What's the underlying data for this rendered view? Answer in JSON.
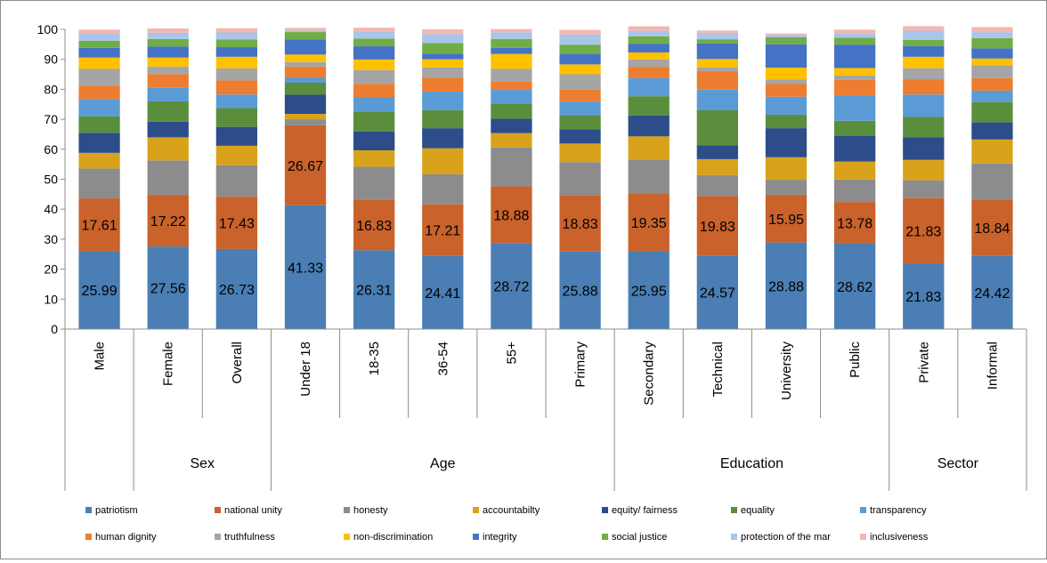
{
  "chart_data": {
    "type": "bar",
    "stacked": true,
    "ylim": [
      0,
      100
    ],
    "yticks": [
      0,
      10,
      20,
      30,
      40,
      50,
      60,
      70,
      80,
      90,
      100
    ],
    "grid": false,
    "legend_position": "bottom",
    "categories": [
      "Male",
      "Female",
      "Overall",
      "Under 18",
      "18-35",
      "36-54",
      "55+",
      "Primary",
      "Secondary",
      "Technical",
      "University",
      "Public",
      "Private",
      "Informal"
    ],
    "groups": [
      {
        "label": "",
        "categories": [
          "Male"
        ]
      },
      {
        "label": "Sex",
        "categories": [
          "Female",
          "Overall"
        ]
      },
      {
        "label": "Age",
        "categories": [
          "Under 18",
          "18-35",
          "36-54",
          "55+",
          "Primary"
        ]
      },
      {
        "label": "Education",
        "categories": [
          "Secondary",
          "Technical",
          "University",
          "Public"
        ]
      },
      {
        "label": "Sector",
        "categories": [
          "Private",
          "Informal"
        ]
      }
    ],
    "series": [
      {
        "name": "patriotism",
        "color": "#4a7eb4",
        "labeled": true,
        "values": [
          25.99,
          27.56,
          26.73,
          41.33,
          26.31,
          24.41,
          28.72,
          25.88,
          25.95,
          24.57,
          28.88,
          28.62,
          21.83,
          24.42
        ]
      },
      {
        "name": "national unity",
        "color": "#c9622b",
        "labeled": true,
        "values": [
          17.61,
          17.22,
          17.43,
          26.67,
          16.83,
          17.21,
          18.88,
          18.83,
          19.35,
          19.83,
          15.95,
          13.78,
          21.83,
          18.84
        ]
      },
      {
        "name": "honesty",
        "color": "#8c8c8c",
        "values": [
          10,
          11.5,
          10.5,
          2,
          11,
          10,
          13,
          11,
          11.2,
          7,
          5,
          7.5,
          6,
          12
        ]
      },
      {
        "name": "accountabilty",
        "color": "#d9a21b",
        "values": [
          5.2,
          7.7,
          6.5,
          1.8,
          5.5,
          8.7,
          4.8,
          6.2,
          7.8,
          5.3,
          7.5,
          6,
          6.8,
          8
        ]
      },
      {
        "name": "equity/ fairness",
        "color": "#2c4d8a",
        "values": [
          6.7,
          5.2,
          6.3,
          6.4,
          6.3,
          6.7,
          4.8,
          4.8,
          7,
          4.6,
          9.7,
          8.6,
          7.5,
          5.7
        ]
      },
      {
        "name": "equality",
        "color": "#5a8e3c",
        "values": [
          5.5,
          6.8,
          6.3,
          4,
          6.7,
          6,
          5,
          4.5,
          6.4,
          11.7,
          4.5,
          5,
          6.8,
          6.8
        ]
      },
      {
        "name": "transparency",
        "color": "#5b9bd5",
        "values": [
          5.8,
          4.5,
          4.5,
          1.8,
          4.8,
          6.2,
          4.6,
          4.7,
          6,
          6.9,
          6,
          8.5,
          7.5,
          3.8
        ]
      },
      {
        "name": "human dignity",
        "color": "#ed7d31",
        "values": [
          4.4,
          4.6,
          4.7,
          3.6,
          4.4,
          4.6,
          2.8,
          4,
          3.8,
          6.2,
          4.2,
          5.2,
          5.1,
          4.2
        ]
      },
      {
        "name": "truthfulness",
        "color": "#a5a5a5",
        "values": [
          5.6,
          2.5,
          4,
          1.5,
          4.6,
          3.5,
          4.2,
          5.1,
          2.5,
          1.2,
          1.6,
          1.4,
          3.7,
          4.3
        ]
      },
      {
        "name": "non-discrimination",
        "color": "#ffc000",
        "values": [
          3.8,
          3,
          3.9,
          2.5,
          3.5,
          2.7,
          5,
          3.3,
          2.3,
          2.8,
          3.9,
          2.5,
          3.8,
          2.2
        ]
      },
      {
        "name": "integrity",
        "color": "#4472c4",
        "values": [
          3.2,
          3.7,
          3.2,
          5,
          4.4,
          1.9,
          2,
          3.5,
          2.9,
          5.2,
          7.8,
          7.8,
          3.6,
          3.4
        ]
      },
      {
        "name": "social justice",
        "color": "#70ad47",
        "values": [
          2.4,
          2.5,
          2.6,
          2.5,
          2.6,
          3.5,
          3,
          3,
          2.5,
          1.4,
          2.3,
          2.3,
          2,
          3.4
        ]
      },
      {
        "name": "protection of the mar",
        "color": "#a9c5e8",
        "values": [
          2.3,
          2.1,
          2.3,
          0.5,
          2.2,
          3,
          2.2,
          3.5,
          1.8,
          2,
          0.8,
          1.3,
          3.1,
          2
        ],
        "legend_label": "protection of the mar"
      },
      {
        "name": "inclusiveness",
        "color": "#f4b6b0",
        "values": [
          1.4,
          1.4,
          1.4,
          0.9,
          1.4,
          1.6,
          1.1,
          1.5,
          1.5,
          0.9,
          0.5,
          1.4,
          1.5,
          1.7
        ]
      }
    ]
  }
}
